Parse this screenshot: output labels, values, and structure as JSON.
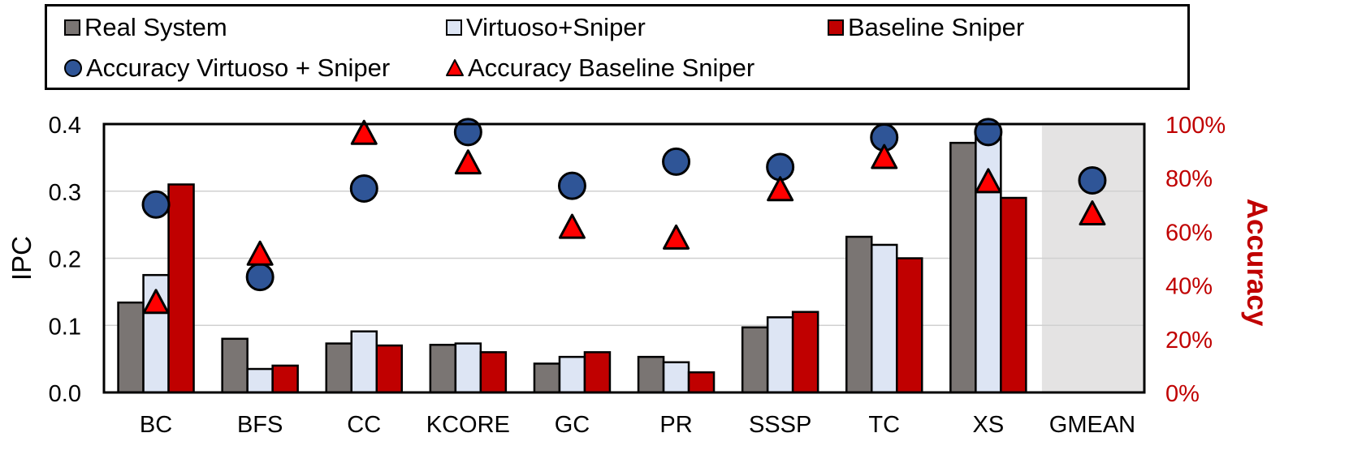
{
  "chart_data": {
    "type": "bar",
    "categories": [
      "BC",
      "BFS",
      "CC",
      "KCORE",
      "GC",
      "PR",
      "SSSP",
      "TC",
      "XS",
      "GMEAN"
    ],
    "series": [
      {
        "name": "Real System",
        "axis": "left",
        "kind": "bar",
        "color": "#7a7573",
        "values": [
          0.134,
          0.08,
          0.073,
          0.071,
          0.043,
          0.053,
          0.097,
          0.232,
          0.372,
          null
        ]
      },
      {
        "name": "Virtuoso+Sniper",
        "axis": "left",
        "kind": "bar",
        "color": "#dde5f4",
        "values": [
          0.175,
          0.035,
          0.091,
          0.073,
          0.053,
          0.045,
          0.112,
          0.22,
          0.39,
          null
        ]
      },
      {
        "name": "Baseline Sniper",
        "axis": "left",
        "kind": "bar",
        "color": "#c00000",
        "values": [
          0.31,
          0.04,
          0.07,
          0.06,
          0.06,
          0.03,
          0.12,
          0.2,
          0.29,
          null
        ]
      },
      {
        "name": "Accuracy Virtuoso + Sniper",
        "axis": "right",
        "kind": "circle",
        "color": "#2f5597",
        "values": [
          70,
          43,
          76,
          97,
          77,
          86,
          84,
          95,
          97,
          79
        ]
      },
      {
        "name": "Accuracy Baseline Sniper",
        "axis": "right",
        "kind": "triangle",
        "color": "#ff0000",
        "values": [
          33,
          51,
          96,
          85,
          61,
          57,
          75,
          87,
          78,
          66
        ]
      }
    ],
    "ylabel": "IPC",
    "ylim": [
      0,
      0.4
    ],
    "yticks": [
      "0.0",
      "0.1",
      "0.2",
      "0.3",
      "0.4"
    ],
    "y2label": "Accuracy",
    "y2lim": [
      0,
      100
    ],
    "y2ticks": [
      "0%",
      "20%",
      "40%",
      "60%",
      "80%",
      "100%"
    ],
    "shaded_category": "GMEAN",
    "shade_color": "#e4e3e3",
    "grid": true,
    "legend_position": "top",
    "accent_color": "#c00000"
  }
}
